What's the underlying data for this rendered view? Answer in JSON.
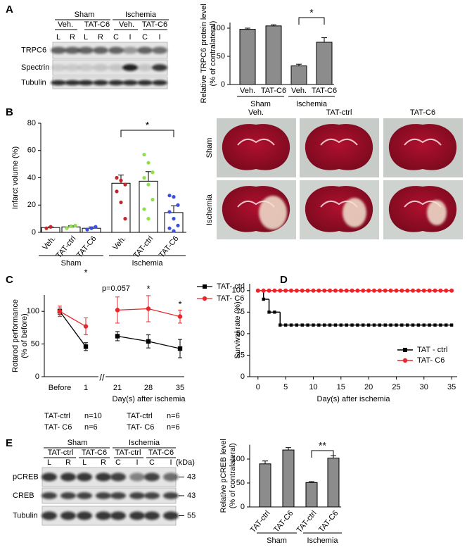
{
  "panel_labels": [
    "A",
    "B",
    "C",
    "D",
    "E"
  ],
  "blot_a": {
    "groups": [
      "Sham",
      "Ischemia"
    ],
    "treatments": [
      "Veh.",
      "TAT-C6",
      "Veh.",
      "TAT-C6"
    ],
    "lanes": [
      "L",
      "R",
      "L",
      "R",
      "C",
      "I",
      "C",
      "I"
    ],
    "rows": [
      "TRPC6",
      "Spectrin",
      "Tubulin"
    ]
  },
  "photos": {
    "columns": [
      "Veh.",
      "TAT-ctrl",
      "TAT-C6"
    ],
    "rows": [
      "Sham",
      "Ischemia"
    ]
  },
  "panel_c_counts": [
    [
      "TAT-ctrl",
      "n=10"
    ],
    [
      "TAT- C6",
      "n=6"
    ],
    [
      "TAT-ctrl",
      "n=6"
    ],
    [
      "TAT- C6",
      "n=6"
    ]
  ],
  "blot_e": {
    "groups": [
      "Sham",
      "Ischemia"
    ],
    "treatments": [
      "TAT-ctrl",
      "TAT-C6",
      "TAT-ctrl",
      "TAT-C6"
    ],
    "lanes": [
      "L",
      "R",
      "L",
      "R",
      "C",
      "I",
      "C",
      "I"
    ],
    "unit": "(kDa)",
    "rows": [
      "pCREB",
      "CREB",
      "Tubulin"
    ],
    "markers": [
      43,
      43,
      55
    ]
  },
  "chart_data": [
    {
      "type": "bar",
      "y_label": [
        "Relative TRPC6 protein level",
        "(% of contralateral)"
      ],
      "categories": [
        "Veh.",
        "TAT-C6",
        "Veh.",
        "TAT-C6"
      ],
      "groups": [
        "Sham",
        "Ischemia"
      ],
      "values": [
        98,
        104,
        33,
        75
      ],
      "errors": [
        2,
        2,
        3,
        8
      ],
      "color": "#8c8c8c",
      "ylim": [
        0,
        110
      ],
      "yticks": [
        0,
        50,
        100
      ],
      "annotations": [
        "*"
      ]
    },
    {
      "type": "bar",
      "y_label": [
        "Infarct volume (%)"
      ],
      "categories": [
        "Veh.",
        "TAT-ctrl",
        "TAT-C6",
        "Veh.",
        "TAT-ctrl",
        "TAT-C6"
      ],
      "groups": [
        "Sham",
        "Ischemia"
      ],
      "values": [
        3.5,
        4,
        3,
        36,
        37.5,
        14.5
      ],
      "errors": [
        0.5,
        0.8,
        1,
        6,
        7,
        5
      ],
      "color": "#ffffff",
      "points": [
        [
          3,
          4
        ],
        [
          3,
          4.5,
          5
        ],
        [
          2,
          3,
          4
        ],
        [
          40,
          38,
          35,
          30,
          22,
          10
        ],
        [
          57,
          51,
          44,
          40,
          35,
          24,
          17,
          10
        ],
        [
          27,
          26,
          20,
          15,
          10,
          5,
          3,
          1
        ]
      ],
      "point_colors": [
        "#c0282d",
        "#8ee04a",
        "#3b4fe0",
        "#c0282d",
        "#8ee04a",
        "#3b4fe0"
      ],
      "ylim": [
        0,
        80
      ],
      "yticks": [
        0,
        20,
        40,
        60,
        80
      ],
      "annotations": [
        "*"
      ]
    },
    {
      "type": "line",
      "y_label": [
        "Rotarod performance",
        "(% of before)"
      ],
      "x_label": "Day(s) after ischemia",
      "categories": [
        "Before",
        "1",
        "21",
        "28",
        "35"
      ],
      "axis_break": "//",
      "series": [
        {
          "name": "TAT- ctrl",
          "color": "#000000",
          "marker": "square",
          "values": [
            100,
            46,
            62,
            54,
            43
          ],
          "errors": [
            5,
            6,
            7,
            10,
            14
          ]
        },
        {
          "name": "TAT- C6",
          "color": "#e8262b",
          "marker": "circle",
          "values": [
            100,
            77,
            102,
            104,
            92
          ],
          "errors": [
            8,
            13,
            20,
            20,
            10
          ]
        }
      ],
      "ylim": [
        0,
        125
      ],
      "yticks": [
        0,
        50,
        100
      ],
      "annotations": [
        "*",
        "p=0.057",
        "*",
        "*"
      ]
    },
    {
      "type": "step",
      "y_label": [
        "Survival rate (%)"
      ],
      "x_label": "Day(s) after ischemia",
      "x": [
        0,
        1,
        2,
        3,
        4,
        5,
        6,
        7,
        8,
        9,
        10,
        11,
        12,
        13,
        14,
        15,
        16,
        17,
        18,
        19,
        20,
        21,
        22,
        23,
        24,
        25,
        26,
        27,
        28,
        29,
        30,
        31,
        32,
        33,
        34,
        35
      ],
      "series": [
        {
          "name": "TAT - ctrl",
          "color": "#000000",
          "marker": "square",
          "values": [
            100,
            90,
            75,
            75,
            60,
            60,
            60,
            60,
            60,
            60,
            60,
            60,
            60,
            60,
            60,
            60,
            60,
            60,
            60,
            60,
            60,
            60,
            60,
            60,
            60,
            60,
            60,
            60,
            60,
            60,
            60,
            60,
            60,
            60,
            60,
            60
          ]
        },
        {
          "name": "TAT- C6",
          "color": "#e8262b",
          "marker": "circle",
          "values": [
            100,
            100,
            100,
            100,
            100,
            100,
            100,
            100,
            100,
            100,
            100,
            100,
            100,
            100,
            100,
            100,
            100,
            100,
            100,
            100,
            100,
            100,
            100,
            100,
            100,
            100,
            100,
            100,
            100,
            100,
            100,
            100,
            100,
            100,
            100,
            100
          ]
        }
      ],
      "xlim": [
        -1.5,
        36
      ],
      "xticks": [
        0,
        5,
        10,
        15,
        20,
        25,
        30,
        35
      ],
      "ylim": [
        0,
        108
      ],
      "yticks": [
        0,
        25,
        50,
        75,
        100
      ],
      "legend": "lower right"
    },
    {
      "type": "bar",
      "y_label": [
        "Relative pCREB level",
        "(% of contralateral)"
      ],
      "categories": [
        "TAT-ctrl",
        "TAT-C6",
        "TAT-ctrl",
        "TAT-C6"
      ],
      "groups": [
        "Sham",
        "Ischemia"
      ],
      "values": [
        90,
        119,
        51,
        102
      ],
      "errors": [
        6,
        5,
        2,
        5
      ],
      "color": "#8c8c8c",
      "ylim": [
        0,
        130
      ],
      "yticks": [
        0,
        50,
        100
      ],
      "annotations": [
        "**"
      ]
    }
  ]
}
